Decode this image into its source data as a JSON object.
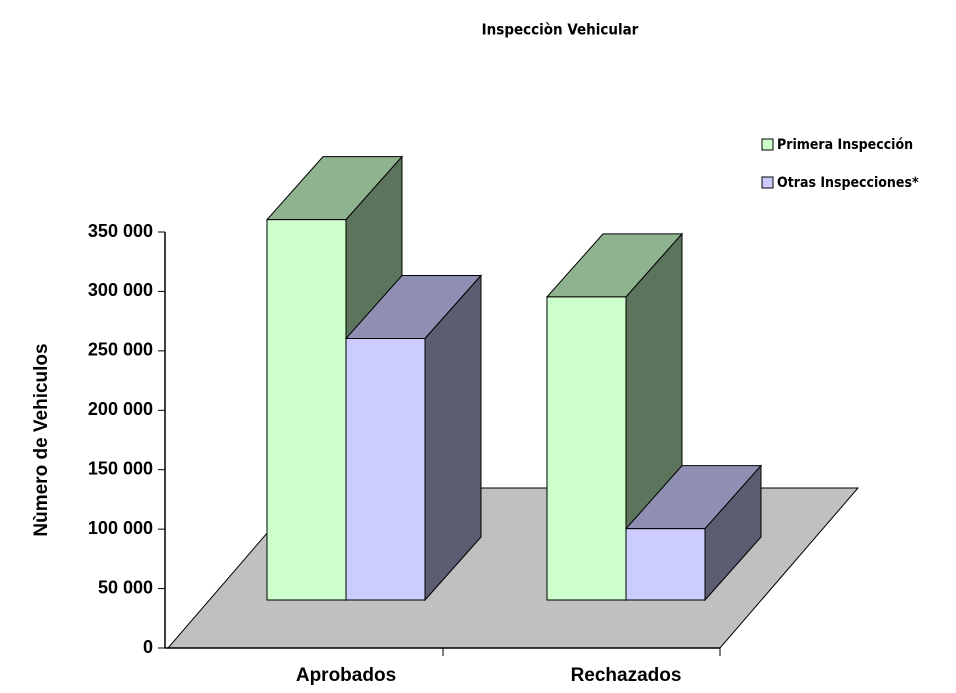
{
  "chart_data": {
    "type": "bar3d",
    "title": "Inspecciòn Vehicular",
    "y_label": "Nùmero de Vehiculos",
    "categories": [
      "Aprobados",
      "Rechazados"
    ],
    "series": [
      {
        "name": "Primera Inspección",
        "color": "#ccffcc",
        "values": [
          320000,
          255000
        ]
      },
      {
        "name": "Otras Inspecciones*",
        "color": "#ccccff",
        "values": [
          220000,
          60000
        ]
      }
    ],
    "ylim": [
      0,
      350000
    ],
    "yticks": [
      0,
      {
        "value": 50000,
        "label": "50 000"
      },
      {
        "value": 100000,
        "label": "100 000"
      },
      {
        "value": 150000,
        "label": "150 000"
      },
      {
        "value": 200000,
        "label": "200 000"
      },
      {
        "value": 250000,
        "label": "250 000"
      },
      {
        "value": 300000,
        "label": "300 000"
      },
      {
        "value": 350000,
        "label": "350 000"
      }
    ],
    "legend": "top-right"
  }
}
